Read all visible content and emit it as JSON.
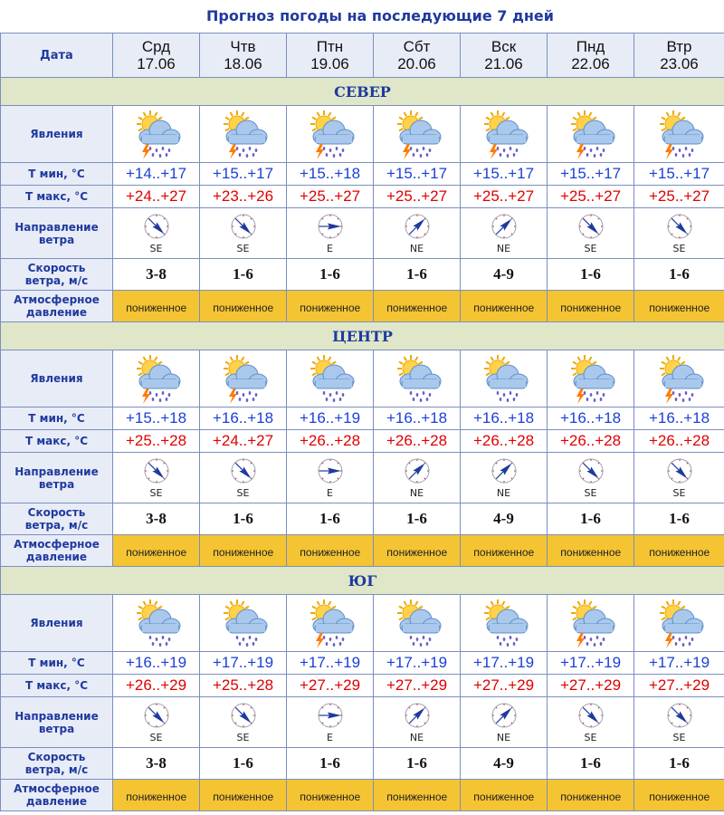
{
  "title": "Прогноз погоды на последующие 7 дней",
  "header": {
    "date_label": "Дата",
    "days": [
      {
        "name": "Срд",
        "date": "17.06"
      },
      {
        "name": "Чтв",
        "date": "18.06"
      },
      {
        "name": "Птн",
        "date": "19.06"
      },
      {
        "name": "Сбт",
        "date": "20.06"
      },
      {
        "name": "Вск",
        "date": "21.06"
      },
      {
        "name": "Пнд",
        "date": "22.06"
      },
      {
        "name": "Втр",
        "date": "23.06"
      }
    ]
  },
  "row_labels": {
    "phenomena": "Явления",
    "tmin": "Т мин, °С",
    "tmax": "Т макс, °С",
    "wind_dir_1": "Направление",
    "wind_dir_2": "ветра",
    "wind_speed_1": "Скорость",
    "wind_speed_2": "ветра, м/с",
    "pressure_1": "Атмосферное",
    "pressure_2": "давление"
  },
  "icon_names": {
    "thunderstorm_rain": "cloud-sun-lightning-rain-icon",
    "rain": "cloud-sun-rain-icon"
  },
  "colors": {
    "tmin": "#1a3fd8",
    "tmax": "#e00000",
    "pressure_bg": "#f5c432",
    "region_bg": "#dfe7c8",
    "header_bg": "#e8ecf7"
  },
  "regions": [
    {
      "name": "СЕВЕР",
      "icons": [
        "thunderstorm_rain",
        "thunderstorm_rain",
        "thunderstorm_rain",
        "thunderstorm_rain",
        "thunderstorm_rain",
        "thunderstorm_rain",
        "thunderstorm_rain"
      ],
      "tmin": [
        "+14..+17",
        "+15..+17",
        "+15..+18",
        "+15..+17",
        "+15..+17",
        "+15..+17",
        "+15..+17"
      ],
      "tmax": [
        "+24..+27",
        "+23..+26",
        "+25..+27",
        "+25..+27",
        "+25..+27",
        "+25..+27",
        "+25..+27"
      ],
      "wind_dir": [
        "SE",
        "SE",
        "E",
        "NE",
        "NE",
        "SE",
        "SE"
      ],
      "wind_speed": [
        "3-8",
        "1-6",
        "1-6",
        "1-6",
        "4-9",
        "1-6",
        "1-6"
      ],
      "pressure": [
        "пониженное",
        "пониженное",
        "пониженное",
        "пониженное",
        "пониженное",
        "пониженное",
        "пониженное"
      ]
    },
    {
      "name": "ЦЕНТР",
      "icons": [
        "thunderstorm_rain",
        "thunderstorm_rain",
        "rain",
        "rain",
        "rain",
        "thunderstorm_rain",
        "thunderstorm_rain"
      ],
      "tmin": [
        "+15..+18",
        "+16..+18",
        "+16..+19",
        "+16..+18",
        "+16..+18",
        "+16..+18",
        "+16..+18"
      ],
      "tmax": [
        "+25..+28",
        "+24..+27",
        "+26..+28",
        "+26..+28",
        "+26..+28",
        "+26..+28",
        "+26..+28"
      ],
      "wind_dir": [
        "SE",
        "SE",
        "E",
        "NE",
        "NE",
        "SE",
        "SE"
      ],
      "wind_speed": [
        "3-8",
        "1-6",
        "1-6",
        "1-6",
        "4-9",
        "1-6",
        "1-6"
      ],
      "pressure": [
        "пониженное",
        "пониженное",
        "пониженное",
        "пониженное",
        "пониженное",
        "пониженное",
        "пониженное"
      ]
    },
    {
      "name": "ЮГ",
      "icons": [
        "rain",
        "rain",
        "thunderstorm_rain",
        "rain",
        "rain",
        "thunderstorm_rain",
        "thunderstorm_rain"
      ],
      "tmin": [
        "+16..+19",
        "+17..+19",
        "+17..+19",
        "+17..+19",
        "+17..+19",
        "+17..+19",
        "+17..+19"
      ],
      "tmax": [
        "+26..+29",
        "+25..+28",
        "+27..+29",
        "+27..+29",
        "+27..+29",
        "+27..+29",
        "+27..+29"
      ],
      "wind_dir": [
        "SE",
        "SE",
        "E",
        "NE",
        "NE",
        "SE",
        "SE"
      ],
      "wind_speed": [
        "3-8",
        "1-6",
        "1-6",
        "1-6",
        "4-9",
        "1-6",
        "1-6"
      ],
      "pressure": [
        "пониженное",
        "пониженное",
        "пониженное",
        "пониженное",
        "пониженное",
        "пониженное",
        "пониженное"
      ]
    }
  ]
}
